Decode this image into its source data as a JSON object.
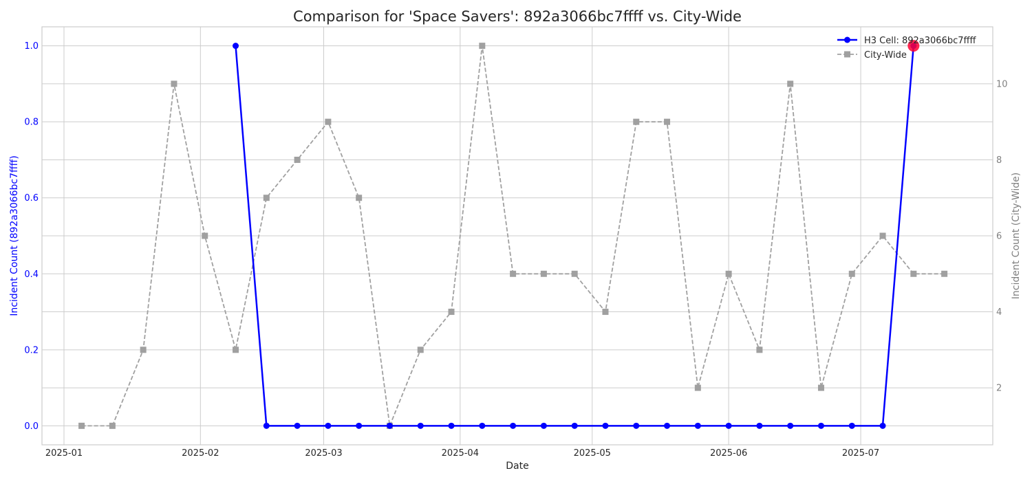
{
  "chart_data": {
    "type": "line",
    "title": "Comparison for 'Space Savers': 892a3066bc7ffff vs. City-Wide",
    "xlabel": "Date",
    "ylabel_left": "Incident Count (892a3066bc7ffff)",
    "ylabel_right": "Incident Count (City-Wide)",
    "x_ticks": [
      "2025-01",
      "2025-02",
      "2025-03",
      "2025-04",
      "2025-05",
      "2025-06",
      "2025-07"
    ],
    "x_tick_dates": [
      "2025-01-01",
      "2025-02-01",
      "2025-03-01",
      "2025-04-01",
      "2025-05-01",
      "2025-06-01",
      "2025-07-01"
    ],
    "xlim": [
      "2024-12-27",
      "2025-07-31"
    ],
    "y_left_ticks": [
      "0.0",
      "0.2",
      "0.4",
      "0.6",
      "0.8",
      "1.0"
    ],
    "y_left_lim": [
      -0.05,
      1.05
    ],
    "y_right_ticks": [
      "2",
      "4",
      "6",
      "8",
      "10"
    ],
    "y_right_lim": [
      0.5,
      11.5
    ],
    "grid": true,
    "legend_position": "top-right",
    "colors": {
      "cell": "#0000ff",
      "city": "#a0a0a0",
      "highlight": "#ff0033",
      "left_axis": "#0000ff",
      "right_axis": "#808080"
    },
    "series": [
      {
        "name": "H3 Cell: 892a3066bc7ffff",
        "axis": "left",
        "style": "solid",
        "marker": "circle",
        "x": [
          "2025-02-09",
          "2025-02-16",
          "2025-02-23",
          "2025-03-02",
          "2025-03-09",
          "2025-03-16",
          "2025-03-23",
          "2025-03-30",
          "2025-04-06",
          "2025-04-13",
          "2025-04-20",
          "2025-04-27",
          "2025-05-04",
          "2025-05-11",
          "2025-05-18",
          "2025-05-25",
          "2025-06-01",
          "2025-06-08",
          "2025-06-15",
          "2025-06-22",
          "2025-06-29",
          "2025-07-06",
          "2025-07-13"
        ],
        "values": [
          1,
          0,
          0,
          0,
          0,
          0,
          0,
          0,
          0,
          0,
          0,
          0,
          0,
          0,
          0,
          0,
          0,
          0,
          0,
          0,
          0,
          0,
          1
        ]
      },
      {
        "name": "City-Wide",
        "axis": "right",
        "style": "dashed",
        "marker": "square",
        "x": [
          "2025-01-05",
          "2025-01-12",
          "2025-01-19",
          "2025-01-26",
          "2025-02-02",
          "2025-02-09",
          "2025-02-16",
          "2025-02-23",
          "2025-03-02",
          "2025-03-09",
          "2025-03-16",
          "2025-03-23",
          "2025-03-30",
          "2025-04-06",
          "2025-04-13",
          "2025-04-20",
          "2025-04-27",
          "2025-05-04",
          "2025-05-11",
          "2025-05-18",
          "2025-05-25",
          "2025-06-01",
          "2025-06-08",
          "2025-06-15",
          "2025-06-22",
          "2025-06-29",
          "2025-07-06",
          "2025-07-13",
          "2025-07-20"
        ],
        "values": [
          1,
          1,
          3,
          10,
          6,
          3,
          7,
          8,
          9,
          7,
          1,
          3,
          4,
          11,
          5,
          5,
          5,
          4,
          9,
          9,
          2,
          5,
          3,
          10,
          2,
          5,
          6,
          5,
          5
        ]
      }
    ],
    "highlight": {
      "series": "H3 Cell: 892a3066bc7ffff",
      "x": "2025-07-13",
      "value": 1
    }
  }
}
